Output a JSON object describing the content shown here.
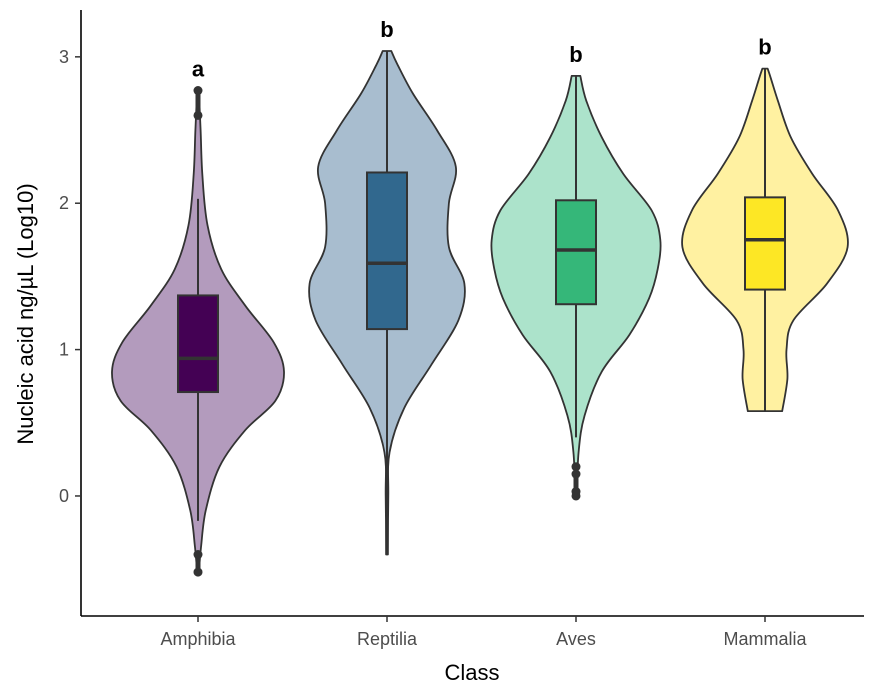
{
  "chart_data": {
    "type": "violin",
    "xlabel": "Class",
    "ylabel": "Nucleic acid ng/µL (Log10)",
    "ylim": [
      -0.82,
      3.32
    ],
    "y_ticks": [
      0,
      1,
      2,
      3
    ],
    "grid": false,
    "legend": "none",
    "categories": [
      "Amphibia",
      "Reptilia",
      "Aves",
      "Mammalia"
    ],
    "series": [
      {
        "category": "Amphibia",
        "significance": "a",
        "violin_color": "#b39bbd",
        "box_color": "#440154",
        "min": -0.52,
        "q1": 0.71,
        "median": 0.94,
        "q3": 1.37,
        "max": 2.77,
        "whisker_low": -0.17,
        "whisker_high": 2.03,
        "outliers": [
          -0.52,
          -0.4,
          2.6,
          2.77
        ],
        "density": [
          [
            -0.52,
            0.01
          ],
          [
            -0.35,
            0.035
          ],
          [
            -0.1,
            0.09
          ],
          [
            0.2,
            0.25
          ],
          [
            0.45,
            0.55
          ],
          [
            0.65,
            0.9
          ],
          [
            0.85,
            1.0
          ],
          [
            1.05,
            0.88
          ],
          [
            1.3,
            0.55
          ],
          [
            1.55,
            0.27
          ],
          [
            1.85,
            0.11
          ],
          [
            2.2,
            0.05
          ],
          [
            2.5,
            0.03
          ],
          [
            2.77,
            0.01
          ]
        ]
      },
      {
        "category": "Reptilia",
        "significance": "b",
        "violin_color": "#a8bdcf",
        "box_color": "#31688e",
        "min": -0.4,
        "q1": 1.14,
        "median": 1.59,
        "q3": 2.21,
        "max": 3.04,
        "whisker_low": -0.4,
        "whisker_high": 3.04,
        "outliers": [],
        "density": [
          [
            -0.4,
            0.01
          ],
          [
            0.0,
            0.015
          ],
          [
            0.3,
            0.03
          ],
          [
            0.6,
            0.2
          ],
          [
            0.9,
            0.52
          ],
          [
            1.2,
            0.83
          ],
          [
            1.45,
            0.9
          ],
          [
            1.7,
            0.72
          ],
          [
            2.0,
            0.72
          ],
          [
            2.25,
            0.8
          ],
          [
            2.5,
            0.58
          ],
          [
            2.75,
            0.3
          ],
          [
            2.95,
            0.12
          ],
          [
            3.04,
            0.05
          ]
        ]
      },
      {
        "category": "Aves",
        "significance": "b",
        "violin_color": "#ace3cb",
        "box_color": "#35b779",
        "min": 0.0,
        "q1": 1.31,
        "median": 1.68,
        "q3": 2.02,
        "max": 2.87,
        "whisker_low": 0.4,
        "whisker_high": 2.87,
        "outliers": [
          0.0,
          0.03,
          0.15,
          0.2
        ],
        "density": [
          [
            0.0,
            0.01
          ],
          [
            0.3,
            0.03
          ],
          [
            0.55,
            0.1
          ],
          [
            0.85,
            0.3
          ],
          [
            1.1,
            0.62
          ],
          [
            1.35,
            0.85
          ],
          [
            1.55,
            0.95
          ],
          [
            1.75,
            0.98
          ],
          [
            1.95,
            0.88
          ],
          [
            2.2,
            0.55
          ],
          [
            2.45,
            0.3
          ],
          [
            2.7,
            0.12
          ],
          [
            2.87,
            0.05
          ]
        ]
      },
      {
        "category": "Mammalia",
        "significance": "b",
        "violin_color": "#fff1a1",
        "box_color": "#fde725",
        "min": 0.58,
        "q1": 1.41,
        "median": 1.75,
        "q3": 2.04,
        "max": 2.92,
        "whisker_low": 0.58,
        "whisker_high": 2.92,
        "outliers": [],
        "density": [
          [
            0.58,
            0.2
          ],
          [
            0.8,
            0.26
          ],
          [
            1.0,
            0.25
          ],
          [
            1.2,
            0.33
          ],
          [
            1.45,
            0.72
          ],
          [
            1.7,
            0.96
          ],
          [
            1.95,
            0.85
          ],
          [
            2.2,
            0.55
          ],
          [
            2.45,
            0.3
          ],
          [
            2.7,
            0.15
          ],
          [
            2.85,
            0.07
          ],
          [
            2.92,
            0.03
          ]
        ]
      }
    ]
  }
}
